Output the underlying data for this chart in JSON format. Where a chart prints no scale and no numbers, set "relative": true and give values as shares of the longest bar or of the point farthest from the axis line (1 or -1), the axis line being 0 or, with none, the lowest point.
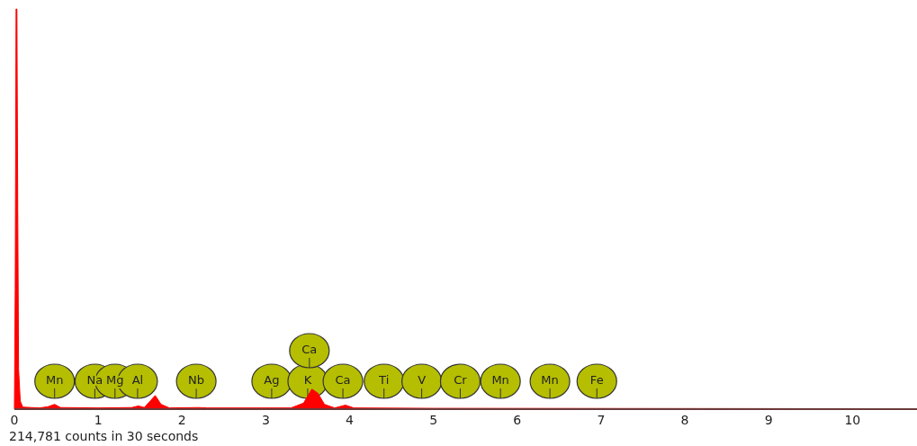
{
  "chart_data": {
    "type": "area",
    "relative": true,
    "xlim": [
      0,
      10.77
    ],
    "xticks": [
      0,
      1,
      2,
      3,
      4,
      5,
      6,
      7,
      8,
      9,
      10
    ],
    "series": [
      {
        "color": "#ff0000",
        "x": [
          0,
          0.01,
          0.02,
          0.03,
          0.04,
          0.05,
          0.07,
          0.1,
          0.3,
          0.4,
          0.48,
          0.55,
          1.0,
          1.4,
          1.48,
          1.55,
          1.62,
          1.68,
          1.75,
          1.85,
          2.2,
          2.3,
          3.3,
          3.45,
          3.55,
          3.62,
          3.7,
          3.82,
          3.95,
          4.05,
          5,
          10.77
        ],
        "values": [
          0,
          0.3,
          1,
          1,
          0.5,
          0.1,
          0.02,
          0.005,
          0.003,
          0.006,
          0.012,
          0.004,
          0.003,
          0.004,
          0.008,
          0.004,
          0.02,
          0.034,
          0.012,
          0.003,
          0.004,
          0.003,
          0.003,
          0.015,
          0.05,
          0.04,
          0.012,
          0.003,
          0.01,
          0.003,
          0.002,
          0.001
        ]
      }
    ],
    "ref_lines": [
      {
        "axis": "x",
        "value": 0.48,
        "label": "Mn"
      },
      {
        "axis": "x",
        "value": 0.96,
        "label": "Na"
      },
      {
        "axis": "x",
        "value": 1.2,
        "label": "Mg"
      },
      {
        "axis": "x",
        "value": 1.47,
        "label": "Al"
      },
      {
        "axis": "x",
        "value": 2.17,
        "label": "Nb"
      },
      {
        "axis": "x",
        "value": 3.07,
        "label": "Ag"
      },
      {
        "axis": "x",
        "value": 3.5,
        "label": "K"
      },
      {
        "axis": "x",
        "value": 3.52,
        "label": "Ca"
      },
      {
        "axis": "x",
        "value": 3.92,
        "label": "Ca"
      },
      {
        "axis": "x",
        "value": 4.41,
        "label": "Ti"
      },
      {
        "axis": "x",
        "value": 4.86,
        "label": "V"
      },
      {
        "axis": "x",
        "value": 5.32,
        "label": "Cr"
      },
      {
        "axis": "x",
        "value": 5.8,
        "label": "Mn"
      },
      {
        "axis": "x",
        "value": 6.39,
        "label": "Mn"
      },
      {
        "axis": "x",
        "value": 6.95,
        "label": "Fe"
      }
    ],
    "annotations": [
      "214,781 counts in 30 seconds"
    ]
  }
}
